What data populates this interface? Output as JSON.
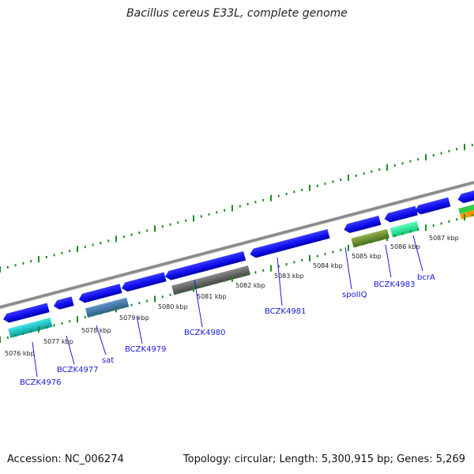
{
  "title": "Bacillus cereus E33L, complete genome",
  "footer": {
    "accession": "Accession: NC_006274",
    "summary": "Topology: circular; Length: 5,300,915 bp; Genes: 5,269"
  },
  "colors": {
    "background": "#ffffff",
    "backbone": "#8a8a8a",
    "tick_green": "#1f8a1f",
    "label_blue": "#1a1adb"
  },
  "scale_labels": [
    "5076 kbp",
    "5077 kbp",
    "5078 kbp",
    "5079 kbp",
    "5080 kbp",
    "5081 kbp",
    "5082 kbp",
    "5083 kbp",
    "5084 kbp",
    "5085 kbp",
    "5086 kbp",
    "5087 kbp"
  ],
  "gene_labels": [
    "BCZK4976",
    "BCZK4977",
    "sat",
    "BCZK4979",
    "BCZK4980",
    "BCZK4981",
    "spoIIQ",
    "BCZK4983",
    "bcrA"
  ]
}
